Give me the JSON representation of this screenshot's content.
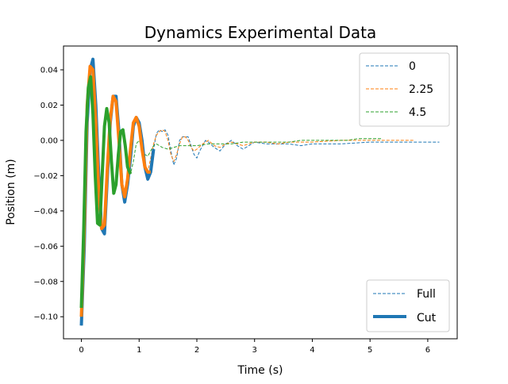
{
  "chart_data": {
    "type": "line",
    "title": "Dynamics Experimental Data",
    "xlabel": "Time (s)",
    "ylabel": "Position (m)",
    "xlim": [
      -0.31,
      6.51
    ],
    "ylim": [
      -0.1125,
      0.0535
    ],
    "xticks": [
      0,
      1,
      2,
      3,
      4,
      5,
      6
    ],
    "yticks": [
      -0.1,
      -0.08,
      -0.06,
      -0.04,
      -0.02,
      0.0,
      0.02,
      0.04
    ],
    "ytick_labels": [
      "−0.10",
      "−0.08",
      "−0.06",
      "−0.04",
      "−0.02",
      "0.00",
      "0.02",
      "0.04"
    ],
    "grid": false,
    "legend_series": {
      "placement": "top-right",
      "entries": [
        {
          "label": "0",
          "color": "#1f77b4"
        },
        {
          "label": "2.25",
          "color": "#ff7f0e"
        },
        {
          "label": "4.5",
          "color": "#2ca02c"
        }
      ]
    },
    "legend_style": {
      "placement": "bottom-right",
      "entries": [
        {
          "label": "Full",
          "dashed": true
        },
        {
          "label": "Cut",
          "dashed": false
        }
      ]
    },
    "series": [
      {
        "name": "0",
        "color": "#1f77b4",
        "full": {
          "x": [
            0,
            0.05,
            0.1,
            0.15,
            0.2,
            0.25,
            0.3,
            0.35,
            0.4,
            0.45,
            0.5,
            0.55,
            0.6,
            0.65,
            0.7,
            0.75,
            0.8,
            0.85,
            0.9,
            0.95,
            1.0,
            1.05,
            1.1,
            1.15,
            1.2,
            1.25,
            1.3,
            1.35,
            1.4,
            1.45,
            1.5,
            1.55,
            1.6,
            1.65,
            1.7,
            1.75,
            1.8,
            1.85,
            1.9,
            1.95,
            2.0,
            2.05,
            2.1,
            2.15,
            2.2,
            2.3,
            2.4,
            2.5,
            2.6,
            2.7,
            2.8,
            2.9,
            3.0,
            3.2,
            3.4,
            3.6,
            3.8,
            4.0,
            4.5,
            5.0,
            5.5,
            6.0,
            6.2
          ],
          "y": [
            -0.105,
            -0.06,
            0.01,
            0.04,
            0.046,
            0.02,
            -0.02,
            -0.05,
            -0.053,
            -0.02,
            0.01,
            0.025,
            0.025,
            0.005,
            -0.025,
            -0.035,
            -0.025,
            -0.01,
            0.008,
            0.013,
            0.01,
            0.0,
            -0.015,
            -0.022,
            -0.018,
            -0.005,
            0.004,
            0.006,
            0.005,
            0.006,
            0.003,
            -0.006,
            -0.014,
            -0.01,
            0.0,
            0.002,
            0.002,
            0.002,
            -0.003,
            -0.008,
            -0.01,
            -0.006,
            -0.003,
            0.0,
            -0.001,
            -0.004,
            -0.006,
            -0.002,
            0.0,
            -0.003,
            -0.005,
            -0.003,
            -0.001,
            -0.002,
            -0.002,
            -0.002,
            -0.003,
            -0.002,
            -0.002,
            -0.001,
            -0.001,
            -0.001,
            -0.001
          ]
        },
        "cut": {
          "x": [
            0,
            0.05,
            0.1,
            0.15,
            0.2,
            0.25,
            0.3,
            0.35,
            0.4,
            0.45,
            0.5,
            0.55,
            0.6,
            0.65,
            0.7,
            0.75,
            0.8,
            0.85,
            0.9,
            0.95,
            1.0,
            1.05,
            1.1,
            1.15,
            1.2,
            1.25
          ],
          "y": [
            -0.105,
            -0.06,
            0.01,
            0.04,
            0.046,
            0.02,
            -0.02,
            -0.05,
            -0.053,
            -0.02,
            0.01,
            0.025,
            0.025,
            0.005,
            -0.025,
            -0.035,
            -0.025,
            -0.01,
            0.008,
            0.013,
            0.01,
            0.0,
            -0.015,
            -0.022,
            -0.018,
            -0.005
          ]
        }
      },
      {
        "name": "2.25",
        "color": "#ff7f0e",
        "full": {
          "x": [
            0,
            0.05,
            0.1,
            0.15,
            0.2,
            0.25,
            0.3,
            0.35,
            0.4,
            0.45,
            0.5,
            0.55,
            0.6,
            0.65,
            0.7,
            0.75,
            0.8,
            0.85,
            0.9,
            0.95,
            1.0,
            1.05,
            1.1,
            1.15,
            1.2,
            1.25,
            1.3,
            1.35,
            1.4,
            1.45,
            1.5,
            1.55,
            1.6,
            1.65,
            1.7,
            1.75,
            1.8,
            1.85,
            1.9,
            1.95,
            2.0,
            2.1,
            2.2,
            2.3,
            2.4,
            2.5,
            2.6,
            2.7,
            2.8,
            3.0,
            3.2,
            3.4,
            3.6,
            3.8,
            4.0,
            4.5,
            5.0,
            5.5,
            5.75
          ],
          "y": [
            -0.1,
            -0.05,
            0.02,
            0.042,
            0.04,
            0.01,
            -0.03,
            -0.05,
            -0.048,
            -0.015,
            0.012,
            0.025,
            0.022,
            0.0,
            -0.025,
            -0.032,
            -0.022,
            -0.005,
            0.01,
            0.013,
            0.008,
            -0.005,
            -0.015,
            -0.018,
            -0.01,
            -0.002,
            0.003,
            0.005,
            0.006,
            0.005,
            0.0,
            -0.008,
            -0.012,
            -0.008,
            -0.002,
            0.002,
            0.002,
            0.0,
            -0.004,
            -0.006,
            -0.005,
            -0.002,
            0.0,
            -0.003,
            -0.004,
            -0.002,
            -0.001,
            -0.002,
            -0.003,
            -0.001,
            -0.001,
            -0.002,
            -0.001,
            -0.001,
            -0.001,
            0.0,
            0.0,
            0.0,
            0.0
          ]
        },
        "cut": {
          "x": [
            0,
            0.05,
            0.1,
            0.15,
            0.2,
            0.25,
            0.3,
            0.35,
            0.4,
            0.45,
            0.5,
            0.55,
            0.6,
            0.65,
            0.7,
            0.75,
            0.8,
            0.85,
            0.9,
            0.95,
            1.0,
            1.05,
            1.1,
            1.15,
            1.2
          ],
          "y": [
            -0.1,
            -0.05,
            0.02,
            0.042,
            0.04,
            0.01,
            -0.03,
            -0.05,
            -0.048,
            -0.015,
            0.012,
            0.025,
            0.022,
            0.0,
            -0.025,
            -0.032,
            -0.022,
            -0.005,
            0.01,
            0.013,
            0.008,
            -0.005,
            -0.015,
            -0.018,
            -0.018
          ]
        }
      },
      {
        "name": "4.5",
        "color": "#2ca02c",
        "full": {
          "x": [
            0,
            0.04,
            0.08,
            0.12,
            0.16,
            0.2,
            0.24,
            0.28,
            0.32,
            0.36,
            0.4,
            0.44,
            0.48,
            0.52,
            0.56,
            0.6,
            0.64,
            0.68,
            0.72,
            0.76,
            0.8,
            0.85,
            0.9,
            0.95,
            1.0,
            1.05,
            1.1,
            1.15,
            1.2,
            1.25,
            1.3,
            1.4,
            1.5,
            1.6,
            1.7,
            1.8,
            1.9,
            2.0,
            2.2,
            2.4,
            2.6,
            2.8,
            3.0,
            3.2,
            3.4,
            3.6,
            3.8,
            4.0,
            4.2,
            4.4,
            4.6,
            4.8,
            5.0,
            5.2
          ],
          "y": [
            -0.095,
            -0.05,
            0.005,
            0.03,
            0.036,
            0.015,
            -0.02,
            -0.047,
            -0.048,
            -0.02,
            0.008,
            0.018,
            0.01,
            -0.012,
            -0.03,
            -0.025,
            -0.008,
            0.005,
            0.006,
            -0.003,
            -0.015,
            -0.019,
            -0.012,
            -0.002,
            0.0,
            -0.004,
            -0.008,
            -0.009,
            -0.006,
            -0.003,
            -0.002,
            -0.004,
            -0.005,
            -0.004,
            -0.003,
            -0.003,
            -0.003,
            -0.003,
            -0.002,
            -0.002,
            -0.002,
            -0.001,
            -0.001,
            -0.001,
            -0.001,
            -0.001,
            0.0,
            0.0,
            0.0,
            0.0,
            0.0,
            0.001,
            0.001,
            0.001
          ]
        },
        "cut": {
          "x": [
            0,
            0.04,
            0.08,
            0.12,
            0.16,
            0.2,
            0.24,
            0.28,
            0.32,
            0.36,
            0.4,
            0.44,
            0.48,
            0.52,
            0.56,
            0.6,
            0.64,
            0.68,
            0.72,
            0.76,
            0.8,
            0.85
          ],
          "y": [
            -0.095,
            -0.05,
            0.005,
            0.03,
            0.036,
            0.015,
            -0.02,
            -0.047,
            -0.048,
            -0.02,
            0.008,
            0.018,
            0.01,
            -0.012,
            -0.03,
            -0.025,
            -0.008,
            0.005,
            0.006,
            -0.003,
            -0.015,
            -0.019
          ]
        }
      }
    ]
  }
}
